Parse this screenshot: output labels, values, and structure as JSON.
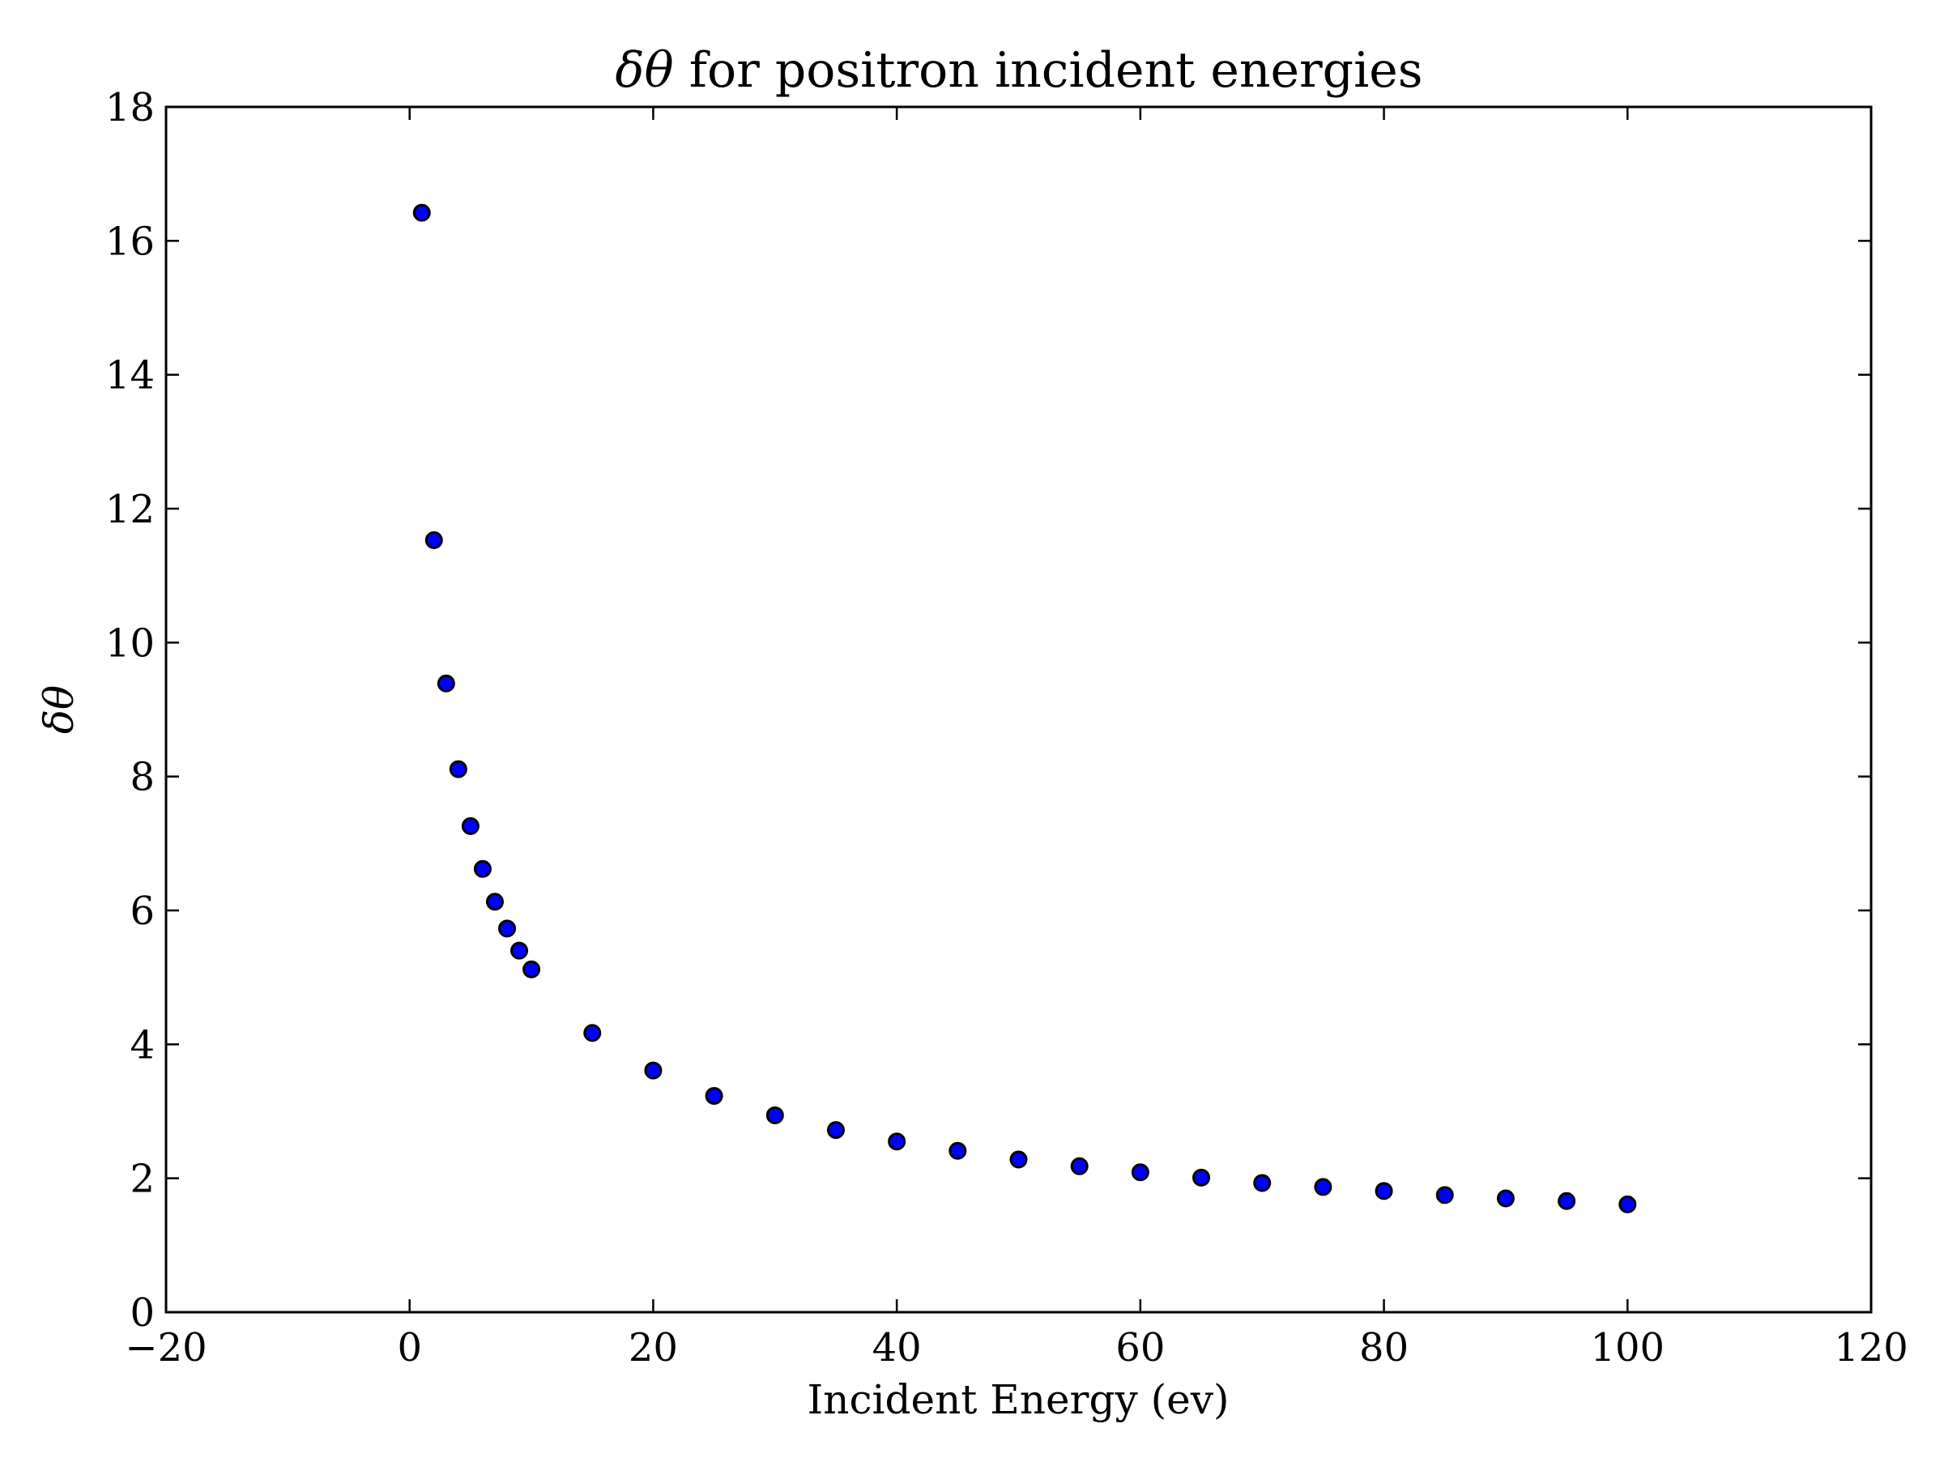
{
  "chart_data": {
    "type": "scatter",
    "title_symbol": "δθ",
    "title_rest": " for positron incident energies",
    "xlabel": "Incident Energy (ev)",
    "ylabel": "δθ",
    "xlim": [
      -20,
      120
    ],
    "ylim": [
      0,
      18
    ],
    "xticks": [
      -20,
      0,
      20,
      40,
      60,
      80,
      100,
      120
    ],
    "xtick_labels": [
      "−20",
      "0",
      "20",
      "40",
      "60",
      "80",
      "100",
      "120"
    ],
    "yticks": [
      0,
      2,
      4,
      6,
      8,
      10,
      12,
      14,
      16,
      18
    ],
    "ytick_labels": [
      "0",
      "2",
      "4",
      "6",
      "8",
      "10",
      "12",
      "14",
      "16",
      "18"
    ],
    "grid": false,
    "marker_color": "#0000ff",
    "marker_edge_color": "#000000",
    "series": [
      {
        "x": [
          1,
          2,
          3,
          4,
          5,
          6,
          7,
          8,
          9,
          10,
          15,
          20,
          25,
          30,
          35,
          40,
          45,
          50,
          55,
          60,
          65,
          70,
          75,
          80,
          85,
          90,
          95,
          100
        ],
        "y": [
          16.42,
          11.53,
          9.39,
          8.11,
          7.26,
          6.62,
          6.13,
          5.73,
          5.4,
          5.12,
          4.17,
          3.61,
          3.23,
          2.94,
          2.72,
          2.55,
          2.41,
          2.28,
          2.18,
          2.09,
          2.01,
          1.93,
          1.87,
          1.81,
          1.75,
          1.7,
          1.66,
          1.61
        ]
      }
    ]
  }
}
